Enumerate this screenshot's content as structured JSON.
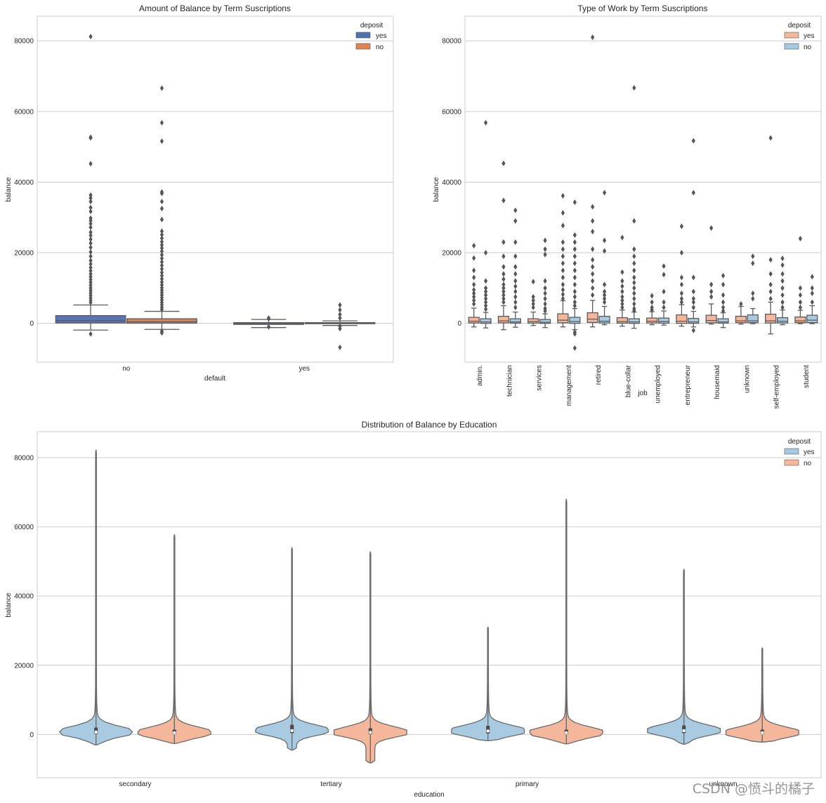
{
  "watermark": "CSDN @愤斗的橘子",
  "chart_data": [
    {
      "id": "c1",
      "type": "box",
      "title": "Amount of Balance by Term Suscriptions",
      "xlabel": "default",
      "ylabel": "balance",
      "ylim": [
        -11000,
        87000
      ],
      "yticks": [
        0,
        20000,
        40000,
        60000,
        80000
      ],
      "categories": [
        "no",
        "yes"
      ],
      "legend": {
        "title": "deposit",
        "position": "top-right",
        "entries": [
          {
            "label": "yes",
            "color": "#4c72b0"
          },
          {
            "label": "no",
            "color": "#dd8452"
          }
        ]
      },
      "series": [
        {
          "name": "yes",
          "color": "#5875b6",
          "boxes": [
            {
              "q1": 100,
              "med": 730,
              "q3": 2200,
              "lo": -1900,
              "hi": 5200,
              "outliers": [
                81200,
                52700,
                52500,
                45200,
                36300,
                35500,
                34500,
                32800,
                31700,
                29800,
                29100,
                28200,
                27200,
                25800,
                24900,
                23800,
                22700,
                21500,
                20200,
                19000,
                17800,
                16800,
                15800,
                14900,
                14000,
                13200,
                12400,
                11600,
                10800,
                10000,
                9300,
                8600,
                7900,
                7200,
                6500,
                5900,
                -3000
              ]
            },
            {
              "q1": -300,
              "med": -10,
              "q3": 200,
              "lo": -1200,
              "hi": 1100,
              "outliers": [
                1500,
                1300,
                -1000
              ]
            }
          ]
        },
        {
          "name": "no",
          "color": "#dd8452",
          "boxes": [
            {
              "q1": 50,
              "med": 430,
              "q3": 1300,
              "lo": -1700,
              "hi": 3400,
              "outliers": [
                66600,
                56800,
                51600,
                37200,
                36800,
                34500,
                32500,
                29400,
                26100,
                25100,
                24100,
                23100,
                22200,
                21300,
                20400,
                19400,
                18400,
                17400,
                16400,
                15400,
                14400,
                13500,
                12600,
                11700,
                10900,
                10100,
                9400,
                8700,
                8000,
                7300,
                6600,
                5900,
                5200,
                4500,
                3900,
                -2200,
                -2700
              ]
            },
            {
              "q1": -100,
              "med": 50,
              "q3": 200,
              "lo": -600,
              "hi": 700,
              "outliers": [
                5200,
                3800,
                2500,
                1500,
                -800,
                -1500,
                -6800
              ]
            }
          ]
        }
      ]
    },
    {
      "id": "c2",
      "type": "box",
      "title": "Type of Work by Term Suscriptions",
      "xlabel": "job",
      "ylabel": "balance",
      "ylim": [
        -11000,
        87000
      ],
      "yticks": [
        0,
        20000,
        40000,
        60000,
        80000
      ],
      "categories": [
        "admin.",
        "technician",
        "services",
        "management",
        "retired",
        "blue-collar",
        "unemployed",
        "entrepreneur",
        "housemaid",
        "unknown",
        "self-employed",
        "student"
      ],
      "legend": {
        "title": "deposit",
        "position": "top-right",
        "entries": [
          {
            "label": "yes",
            "color": "#f5b99a"
          },
          {
            "label": "no",
            "color": "#a6c8e0"
          }
        ]
      },
      "series": [
        {
          "name": "yes",
          "color": "#f4b79b",
          "boxes": [
            {
              "q1": 100,
              "med": 600,
              "q3": 1700,
              "lo": -1000,
              "hi": 4300,
              "outliers": [
                22000,
                18500,
                15000,
                13000,
                11000,
                9500,
                8500,
                7500,
                6500,
                5500
              ]
            },
            {
              "q1": 150,
              "med": 700,
              "q3": 2000,
              "lo": -1800,
              "hi": 5000,
              "outliers": [
                45300,
                34800,
                23000,
                19000,
                16000,
                14000,
                12500,
                11000,
                10000,
                9000,
                8000,
                7000,
                6000
              ]
            },
            {
              "q1": 50,
              "med": 500,
              "q3": 1300,
              "lo": -600,
              "hi": 3200,
              "outliers": [
                11800,
                7500,
                6500,
                5500,
                4500
              ]
            },
            {
              "q1": 150,
              "med": 900,
              "q3": 2700,
              "lo": -1000,
              "hi": 6400,
              "outliers": [
                36100,
                31300,
                27700,
                23000,
                21000,
                19000,
                17000,
                15000,
                13000,
                11000,
                9500,
                8200,
                7000
              ]
            },
            {
              "q1": 250,
              "med": 1200,
              "q3": 3000,
              "lo": -1000,
              "hi": 6500,
              "outliers": [
                81000,
                33000,
                29000,
                26000,
                21000,
                18000,
                16000,
                14000,
                12000,
                10000,
                8000
              ]
            },
            {
              "q1": 50,
              "med": 500,
              "q3": 1600,
              "lo": -800,
              "hi": 3800,
              "outliers": [
                24300,
                14500,
                12000,
                10500,
                9000,
                7500,
                6500,
                5500,
                4500
              ]
            },
            {
              "q1": 100,
              "med": 600,
              "q3": 1500,
              "lo": -400,
              "hi": 3300,
              "outliers": [
                7800,
                6000,
                4500,
                3800
              ]
            },
            {
              "q1": 0,
              "med": 600,
              "q3": 2400,
              "lo": -800,
              "hi": 5300,
              "outliers": [
                27500,
                20000,
                13000,
                11000,
                8500,
                7000,
                6000
              ]
            },
            {
              "q1": 150,
              "med": 800,
              "q3": 2300,
              "lo": -200,
              "hi": 5500,
              "outliers": [
                27000,
                11000,
                9000,
                7500
              ]
            },
            {
              "q1": 200,
              "med": 700,
              "q3": 2000,
              "lo": -200,
              "hi": 4800,
              "outliers": [
                5500
              ]
            },
            {
              "q1": 100,
              "med": 700,
              "q3": 2600,
              "lo": -3000,
              "hi": 6000,
              "outliers": [
                52500,
                18000,
                14000,
                11000,
                9000,
                7000
              ]
            },
            {
              "q1": 200,
              "med": 700,
              "q3": 1800,
              "lo": -100,
              "hi": 3700,
              "outliers": [
                24000,
                10000,
                8000,
                6000,
                4500
              ]
            }
          ]
        },
        {
          "name": "no",
          "color": "#a9cbe1",
          "boxes": [
            {
              "q1": 0,
              "med": 400,
              "q3": 1300,
              "lo": -1300,
              "hi": 3100,
              "outliers": [
                56800,
                20000,
                12000,
                10000,
                9000,
                8000,
                7000,
                6000,
                5000,
                4000
              ]
            },
            {
              "q1": 50,
              "med": 400,
              "q3": 1300,
              "lo": -1100,
              "hi": 3200,
              "outliers": [
                32000,
                29000,
                23000,
                19000,
                16000,
                14000,
                12000,
                10500,
                9000,
                7500,
                6000,
                4500
              ]
            },
            {
              "q1": 0,
              "med": 300,
              "q3": 1100,
              "lo": -1200,
              "hi": 2700,
              "outliers": [
                23500,
                21000,
                19500,
                12000,
                10000,
                8500,
                7000,
                5500,
                4200,
                3500
              ]
            },
            {
              "q1": 0,
              "med": 500,
              "q3": 1700,
              "lo": -1800,
              "hi": 4200,
              "outliers": [
                34300,
                25000,
                23000,
                21000,
                19000,
                17000,
                15000,
                13000,
                11000,
                9000,
                7500,
                6000,
                5000,
                -2500,
                -3000,
                -7000
              ]
            },
            {
              "q1": 100,
              "med": 600,
              "q3": 2000,
              "lo": -400,
              "hi": 4800,
              "outliers": [
                37000,
                23500,
                20500,
                11000,
                9000,
                8000,
                7000,
                6000
              ]
            },
            {
              "q1": 0,
              "med": 400,
              "q3": 1300,
              "lo": -1400,
              "hi": 3200,
              "outliers": [
                66700,
                29000,
                21000,
                19000,
                17000,
                15000,
                13000,
                11500,
                10000,
                8500,
                7000,
                5500,
                4200,
                3600
              ]
            },
            {
              "q1": 50,
              "med": 500,
              "q3": 1500,
              "lo": -500,
              "hi": 3500,
              "outliers": [
                16200,
                13800,
                9000,
                6000,
                4500
              ]
            },
            {
              "q1": 0,
              "med": 400,
              "q3": 1400,
              "lo": -1000,
              "hi": 3400,
              "outliers": [
                51700,
                37000,
                13000,
                9000,
                7000,
                6000,
                4500,
                -2000
              ]
            },
            {
              "q1": 50,
              "med": 400,
              "q3": 1300,
              "lo": -1200,
              "hi": 3000,
              "outliers": [
                13500,
                11000,
                8000,
                6000,
                4500,
                3500
              ]
            },
            {
              "q1": 200,
              "med": 700,
              "q3": 2400,
              "lo": -100,
              "hi": 4200,
              "outliers": [
                19000,
                17000,
                8500,
                7000
              ]
            },
            {
              "q1": 100,
              "med": 600,
              "q3": 1600,
              "lo": -400,
              "hi": 3800,
              "outliers": [
                18400,
                16500,
                14000,
                12000,
                10000,
                8000,
                6000,
                4500
              ]
            },
            {
              "q1": 200,
              "med": 900,
              "q3": 2300,
              "lo": -100,
              "hi": 5000,
              "outliers": [
                13200,
                10000,
                8500,
                6000
              ]
            }
          ]
        }
      ]
    },
    {
      "id": "c3",
      "type": "violin",
      "title": "Distribution of Balance by Education",
      "xlabel": "education",
      "ylabel": "balance",
      "ylim": [
        -12500,
        87500
      ],
      "yticks": [
        0,
        20000,
        40000,
        60000,
        80000
      ],
      "categories": [
        "secondary",
        "tertiary",
        "primary",
        "unknown"
      ],
      "legend": {
        "title": "deposit",
        "position": "top-right",
        "entries": [
          {
            "label": "yes",
            "color": "#a6c8e0"
          },
          {
            "label": "no",
            "color": "#f5b99a"
          }
        ]
      },
      "series": [
        {
          "name": "yes",
          "color": "#a9cbe1",
          "violins": [
            {
              "min": -3000,
              "max": 82200,
              "q1": 200,
              "med": 700,
              "q3": 2000
            },
            {
              "min": -4500,
              "max": 54000,
              "q1": 400,
              "med": 1100,
              "q3": 2800
            },
            {
              "min": -1800,
              "max": 31000,
              "q1": 300,
              "med": 1000,
              "q3": 2500
            },
            {
              "min": -2800,
              "max": 47700,
              "q1": 400,
              "med": 1100,
              "q3": 2600
            }
          ]
        },
        {
          "name": "no",
          "color": "#f4b79b",
          "violins": [
            {
              "min": -2600,
              "max": 57700,
              "q1": 100,
              "med": 500,
              "q3": 1400
            },
            {
              "min": -8200,
              "max": 52800,
              "q1": 100,
              "med": 600,
              "q3": 1800
            },
            {
              "min": -2700,
              "max": 68000,
              "q1": 100,
              "med": 500,
              "q3": 1400
            },
            {
              "min": -2200,
              "max": 25000,
              "q1": 100,
              "med": 500,
              "q3": 1400
            }
          ]
        }
      ]
    }
  ]
}
